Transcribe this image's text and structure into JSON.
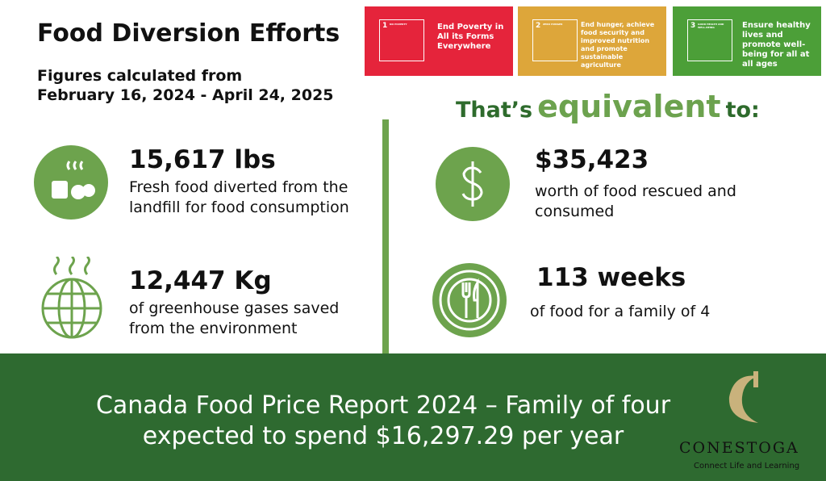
{
  "header": {
    "title": "Food Diversion Efforts",
    "subtitle_lines": [
      "Figures calculated from",
      "February 16, 2024 - April 24, 2025"
    ]
  },
  "sdg_goals": [
    {
      "number": "1",
      "label": "NO POVERTY",
      "text": "End Poverty in All its Forms Everywhere"
    },
    {
      "number": "2",
      "label": "ZERO HUNGER",
      "text": "End hunger, achieve food security and improved nutrition and promote sustainable agriculture"
    },
    {
      "number": "3",
      "label": "GOOD HEALTH AND WELL-BEING",
      "text": "Ensure healthy lives and promote well-being for all at all ages"
    }
  ],
  "equivalent_heading": {
    "before": "That’s",
    "emphasis": "equivalent",
    "after": "to:"
  },
  "stats": [
    {
      "value": "15,617 lbs",
      "lines": [
        "Fresh food diverted from the",
        "landfill for food consumption"
      ]
    },
    {
      "value": "12,447 Kg",
      "lines": [
        "of greenhouse gases saved",
        "from the environment"
      ]
    },
    {
      "value": "$35,423",
      "lines": [
        "worth of food rescued and",
        "consumed"
      ]
    },
    {
      "value": "113 weeks",
      "lines": [
        "of food for a family of 4"
      ]
    }
  ],
  "footer": {
    "lines": [
      "Canada Food Price Report 2024 – Family of four",
      "expected to spend $16,297.29 per year"
    ]
  },
  "logo": {
    "name": "CONESTOGA",
    "tagline": "Connect Life and Learning"
  }
}
